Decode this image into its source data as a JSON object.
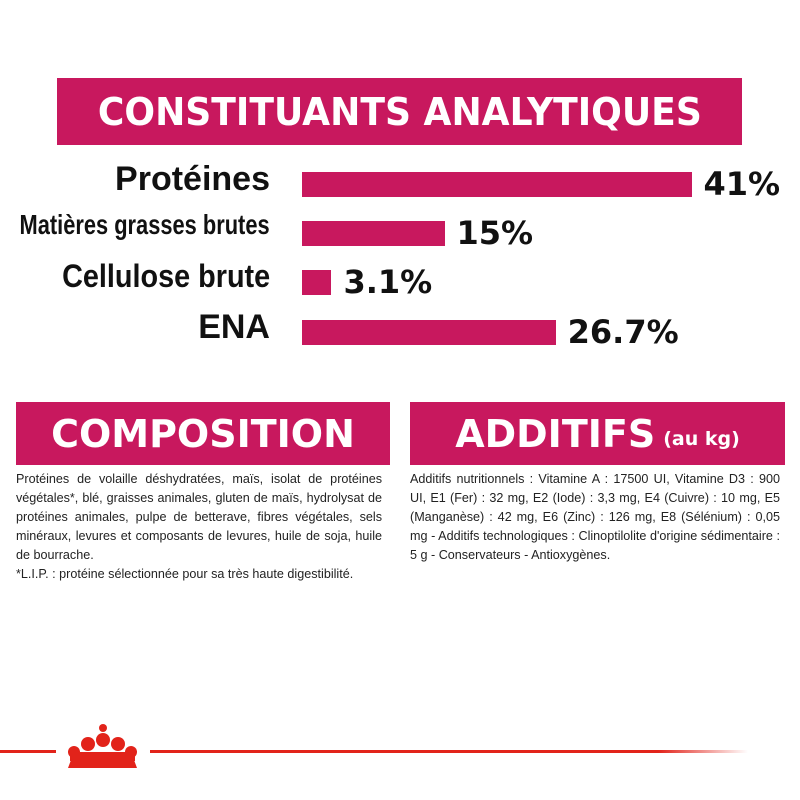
{
  "analytics": {
    "title": "CONSTITUANTS ANALYTIQUES",
    "items": [
      {
        "label": "Protéines",
        "value": 41,
        "value_label": "41%"
      },
      {
        "label": "Matières grasses brutes",
        "value": 15,
        "value_label": "15%"
      },
      {
        "label": "Cellulose brute",
        "value": 3.1,
        "value_label": "3.1%"
      },
      {
        "label": "ENA",
        "value": 26.7,
        "value_label": "26.7%"
      }
    ]
  },
  "composition": {
    "title": "COMPOSITION",
    "text": "Protéines de volaille déshydratées, maïs, isolat de protéines végétales*, blé, graisses animales, gluten de maïs, hydrolysat de protéines animales, pulpe de betterave, fibres végétales, sels minéraux, levures et composants de levures, huile de soja, huile de bourrache.",
    "note": "*L.I.P. : protéine sélectionnée pour sa très haute digestibilité."
  },
  "additives": {
    "title": "ADDITIFS",
    "subtitle": "(au kg)",
    "text": "Additifs nutritionnels : Vitamine A : 17500 UI, Vitamine D3 : 900 UI, E1 (Fer) : 32 mg, E2 (Iode) : 3,3 mg, E4 (Cuivre) : 10 mg, E5 (Manganèse) : 42 mg, E6 (Zinc) : 126 mg, E8 (Sélénium) : 0,05 mg - Additifs technologiques : Clinoptilolite d'origine sédimentaire : 5 g - Conservateurs - Antioxygènes."
  }
}
